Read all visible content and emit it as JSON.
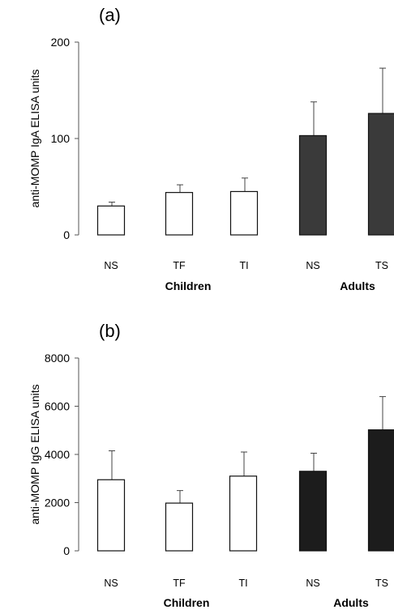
{
  "chart_data": [
    {
      "type": "bar",
      "panel_label": "(a)",
      "ylabel": "anti-MOMP IgA ELISA units",
      "ylim": [
        0,
        200
      ],
      "yticks": [
        0,
        100,
        200
      ],
      "categories": [
        "NS",
        "TF",
        "TI",
        "NS",
        "TS"
      ],
      "groups": [
        {
          "label": "Children",
          "categories": [
            0,
            1,
            2
          ]
        },
        {
          "label": "Adults",
          "categories": [
            3,
            4
          ]
        }
      ],
      "values": [
        30,
        44,
        45,
        103,
        126
      ],
      "error_upper": [
        34,
        52,
        59,
        138,
        173
      ],
      "fill_colors": [
        "#ffffff",
        "#ffffff",
        "#ffffff",
        "#3a3a3a",
        "#3a3a3a"
      ],
      "grid": false
    },
    {
      "type": "bar",
      "panel_label": "(b)",
      "ylabel": "anti-MOMP IgG ELISA units",
      "ylim": [
        0,
        8000
      ],
      "yticks": [
        0,
        2000,
        4000,
        6000,
        8000
      ],
      "categories": [
        "NS",
        "TF",
        "TI",
        "NS",
        "TS"
      ],
      "groups": [
        {
          "label": "Children",
          "categories": [
            0,
            1,
            2
          ]
        },
        {
          "label": "Adults",
          "categories": [
            3,
            4
          ]
        }
      ],
      "values": [
        2950,
        1980,
        3100,
        3300,
        5020
      ],
      "error_upper": [
        4150,
        2500,
        4100,
        4050,
        6400
      ],
      "fill_colors": [
        "#ffffff",
        "#ffffff",
        "#ffffff",
        "#1c1c1c",
        "#1c1c1c"
      ],
      "grid": false
    }
  ]
}
